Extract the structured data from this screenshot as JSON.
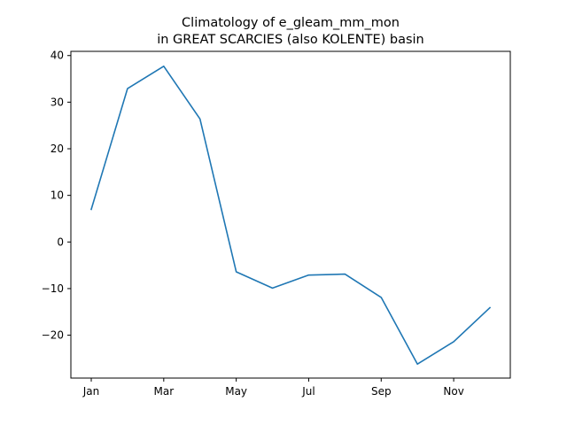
{
  "chart_data": {
    "type": "line",
    "title_lines": [
      "Climatology of e_gleam_mm_mon",
      "in GREAT SCARCIES (also KOLENTE) basin"
    ],
    "xlabel": "",
    "ylabel": "",
    "x": [
      "Jan",
      "Feb",
      "Mar",
      "Apr",
      "May",
      "Jun",
      "Jul",
      "Aug",
      "Sep",
      "Oct",
      "Nov",
      "Dec"
    ],
    "x_tick_labels": [
      "Jan",
      "Mar",
      "May",
      "Jul",
      "Sep",
      "Nov"
    ],
    "y_ticks": [
      -20,
      -10,
      0,
      10,
      20,
      30,
      40
    ],
    "y_tick_labels": [
      "−20",
      "−10",
      "0",
      "10",
      "20",
      "30",
      "40"
    ],
    "ylim": [
      -29.2,
      40.9
    ],
    "series": [
      {
        "values": [
          7.0,
          32.9,
          37.7,
          26.4,
          -6.4,
          -9.9,
          -7.1,
          -6.9,
          -11.9,
          -26.2,
          -21.4,
          -14.1
        ],
        "color": "#1f77b4"
      }
    ],
    "grid": false,
    "legend": "none"
  }
}
